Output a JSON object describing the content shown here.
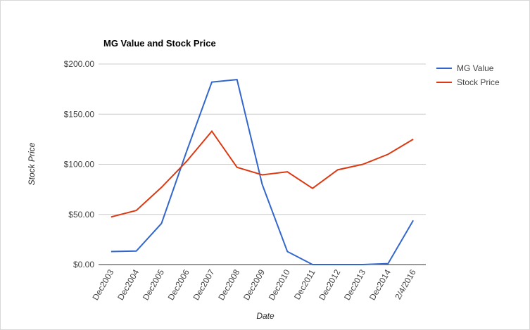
{
  "chart_data": {
    "type": "line",
    "title": "MG Value and Stock Price",
    "x_label": "Date",
    "y_label": "Stock Price",
    "categories": [
      "Dec2003",
      "Dec2004",
      "Dec2005",
      "Dec2006",
      "Dec2007",
      "Dec2008",
      "Dec2009",
      "Dec2010",
      "Dec2011",
      "Dec2012",
      "Dec2013",
      "Dec2014",
      "2/4/2016"
    ],
    "series": [
      {
        "name": "MG Value",
        "color": "#3366cc",
        "values": [
          13,
          13.5,
          41,
          113,
          182,
          184.5,
          80,
          13,
          0,
          0,
          0,
          1,
          44
        ]
      },
      {
        "name": "Stock Price",
        "color": "#dc3912",
        "values": [
          47.5,
          54,
          77,
          103,
          133,
          97,
          89.5,
          92.5,
          76,
          94.5,
          100,
          110,
          125
        ]
      }
    ],
    "ylim": [
      0,
      200
    ],
    "yticks": [
      {
        "value": 0,
        "label": "$0.00"
      },
      {
        "value": 50,
        "label": "$50.00"
      },
      {
        "value": 100,
        "label": "$100.00"
      },
      {
        "value": 150,
        "label": "$150.00"
      },
      {
        "value": 200,
        "label": "$200.00"
      }
    ],
    "grid": true,
    "legend": "right"
  }
}
